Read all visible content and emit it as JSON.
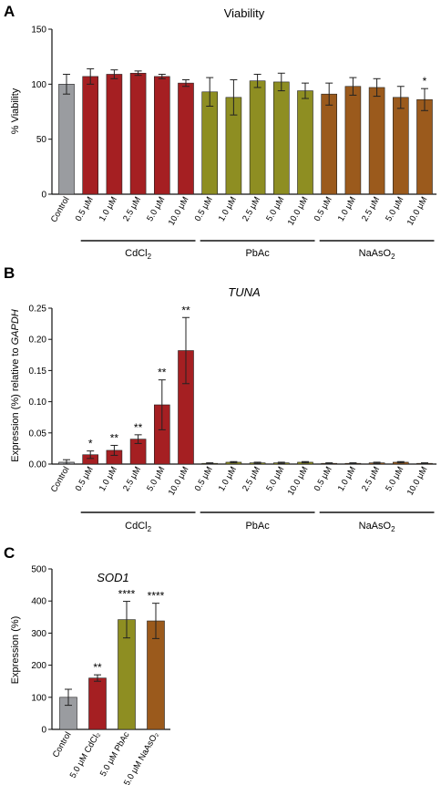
{
  "colors": {
    "control": "#9a9ca0",
    "cd": "#a51f22",
    "pb": "#8e8e22",
    "as": "#9b5a1c"
  },
  "chart_data": [
    {
      "panel": "A",
      "type": "bar",
      "title": "Viability",
      "title_italic": false,
      "ylabel": "% Viability",
      "ylim": [
        0,
        150
      ],
      "yticks": [
        "0",
        "50",
        "100",
        "150"
      ],
      "categories": [
        "Control",
        "0.5 μM",
        "1.0 μM",
        "2.5 μM",
        "5.0 μM",
        "10.0 μM",
        "0.5 μM",
        "1.0 μM",
        "2.5 μM",
        "5.0 μM",
        "10.0 μM",
        "0.5 μM",
        "1.0 μM",
        "2.5 μM",
        "5.0 μM",
        "10.0 μM"
      ],
      "values": [
        100,
        107,
        109,
        110,
        107,
        101,
        93,
        88,
        103,
        102,
        94,
        91,
        98,
        97,
        88,
        86
      ],
      "errors": [
        9,
        7,
        4,
        2,
        2,
        3,
        13,
        16,
        6,
        8,
        7,
        10,
        8,
        8,
        10,
        10
      ],
      "color_keys": [
        "control",
        "cd",
        "cd",
        "cd",
        "cd",
        "cd",
        "pb",
        "pb",
        "pb",
        "pb",
        "pb",
        "as",
        "as",
        "as",
        "as",
        "as"
      ],
      "significance": [
        "",
        "",
        "",
        "",
        "",
        "",
        "",
        "",
        "",
        "",
        "",
        "",
        "",
        "",
        "",
        "*"
      ],
      "groups": [
        {
          "label": "CdCl",
          "sub": "2",
          "start": 1,
          "end": 5
        },
        {
          "label": "PbAc",
          "sub": "",
          "start": 6,
          "end": 10
        },
        {
          "label": "NaAsO",
          "sub": "2",
          "start": 11,
          "end": 15
        }
      ]
    },
    {
      "panel": "B",
      "type": "bar",
      "title": "TUNA",
      "title_italic": true,
      "ylabel_prefix": "Expression (%) relative to ",
      "ylabel_gene": "GAPDH",
      "ylim": [
        0,
        0.25
      ],
      "yticks": [
        "0.00",
        "0.05",
        "0.10",
        "0.15",
        "0.20",
        "0.25"
      ],
      "categories": [
        "Control",
        "0.5 μM",
        "1.0 μM",
        "2.5 μM",
        "5.0 μM",
        "10.0 μM",
        "0.5 μM",
        "1.0 μM",
        "2.5 μM",
        "5.0 μM",
        "10.0 μM",
        "0.5 μM",
        "1.0 μM",
        "2.5 μM",
        "5.0 μM",
        "10.0 μM"
      ],
      "values": [
        0.003,
        0.015,
        0.022,
        0.04,
        0.095,
        0.182,
        0.001,
        0.003,
        0.002,
        0.002,
        0.003,
        0.001,
        0.001,
        0.002,
        0.003,
        0.001
      ],
      "errors": [
        0.004,
        0.006,
        0.008,
        0.007,
        0.04,
        0.053,
        0.001,
        0.001,
        0.001,
        0.001,
        0.001,
        0.001,
        0.001,
        0.001,
        0.001,
        0.001
      ],
      "color_keys": [
        "control",
        "cd",
        "cd",
        "cd",
        "cd",
        "cd",
        "pb",
        "pb",
        "pb",
        "pb",
        "pb",
        "as",
        "as",
        "as",
        "as",
        "as"
      ],
      "significance": [
        "",
        "*",
        "**",
        "**",
        "**",
        "**",
        "",
        "",
        "",
        "",
        "",
        "",
        "",
        "",
        "",
        ""
      ],
      "groups": [
        {
          "label": "CdCl",
          "sub": "2",
          "start": 1,
          "end": 5
        },
        {
          "label": "PbAc",
          "sub": "",
          "start": 6,
          "end": 10
        },
        {
          "label": "NaAsO",
          "sub": "2",
          "start": 11,
          "end": 15
        }
      ]
    },
    {
      "panel": "C",
      "type": "bar",
      "title": "SOD1",
      "title_italic": true,
      "ylabel": "Expression (%)",
      "ylim": [
        0,
        500
      ],
      "yticks": [
        "0",
        "100",
        "200",
        "300",
        "400",
        "500"
      ],
      "categories": [
        "Control",
        "5.0 μM CdCl₂",
        "5.0 μM PbAc",
        "5.0 μM NaAsO₂"
      ],
      "values": [
        100,
        160,
        342,
        338
      ],
      "errors": [
        25,
        10,
        57,
        55
      ],
      "color_keys": [
        "control",
        "cd",
        "pb",
        "as"
      ],
      "significance": [
        "",
        "**",
        "****",
        "****"
      ],
      "groups": []
    }
  ]
}
